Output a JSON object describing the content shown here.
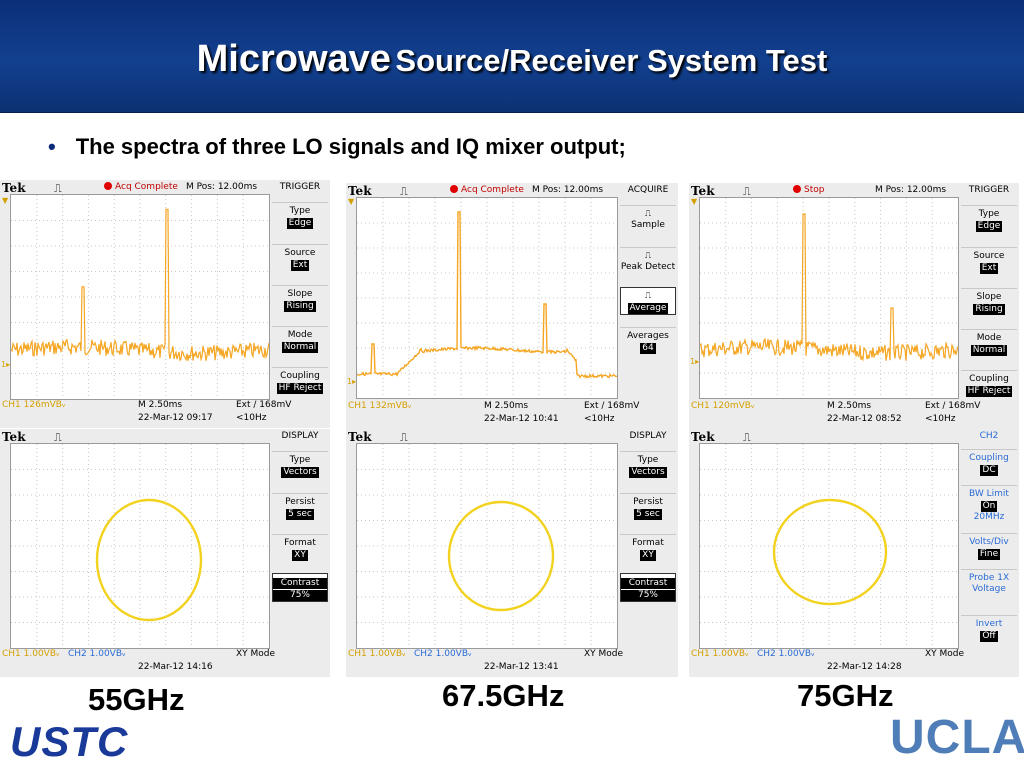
{
  "title": {
    "part1": "Microwave",
    "part2": "Source/Receiver System Test"
  },
  "bullet": "The spectra of three LO signals and IQ mixer output;",
  "scopes": [
    {
      "brand": "Tek",
      "status": "Acq Complete",
      "mpos": "M Pos: 12.00ms",
      "menu_title": "TRIGGER",
      "menu": [
        {
          "label": "Type",
          "value": "Edge"
        },
        {
          "label": "Source",
          "value": "Ext"
        },
        {
          "label": "Slope",
          "value": "Rising"
        },
        {
          "label": "Mode",
          "value": "Normal"
        },
        {
          "label": "Coupling",
          "value": "HF Reject"
        }
      ],
      "footer": {
        "ch1": "CH1  126mVBᵥ",
        "time": "M 2.50ms",
        "trig": "Ext ∕ 168mV",
        "date": "22-Mar-12 09:17",
        "freq": "<10Hz"
      }
    },
    {
      "brand": "Tek",
      "status": "Acq Complete",
      "mpos": "M Pos: 12.00ms",
      "menu_title": "ACQUIRE",
      "menu": [
        {
          "label": "Sample",
          "value": ""
        },
        {
          "label": "Peak Detect",
          "value": ""
        },
        {
          "label": "",
          "value": "Average"
        },
        {
          "label": "Averages",
          "value": "64"
        }
      ],
      "footer": {
        "ch1": "CH1  132mVBᵥ",
        "time": "M 2.50ms",
        "trig": "Ext ∕ 168mV",
        "date": "22-Mar-12 10:41",
        "freq": "<10Hz"
      }
    },
    {
      "brand": "Tek",
      "status": "Stop",
      "mpos": "M Pos: 12.00ms",
      "menu_title": "TRIGGER",
      "menu": [
        {
          "label": "Type",
          "value": "Edge"
        },
        {
          "label": "Source",
          "value": "Ext"
        },
        {
          "label": "Slope",
          "value": "Rising"
        },
        {
          "label": "Mode",
          "value": "Normal"
        },
        {
          "label": "Coupling",
          "value": "HF Reject"
        }
      ],
      "footer": {
        "ch1": "CH1  120mVBᵥ",
        "time": "M 2.50ms",
        "trig": "Ext ∕ 168mV",
        "date": "22-Mar-12 08:52",
        "freq": "<10Hz"
      }
    },
    {
      "brand": "Tek",
      "menu_title": "DISPLAY",
      "menu": [
        {
          "label": "Type",
          "value": "Vectors"
        },
        {
          "label": "Persist",
          "value": "5 sec"
        },
        {
          "label": "Format",
          "value": "XY"
        },
        {
          "label": "Contrast",
          "value": "75%"
        }
      ],
      "footer": {
        "ch1": "CH1  1.00VBᵥ",
        "ch2": "CH2  1.00VBᵥ",
        "mode": "XY Mode",
        "date": "22-Mar-12 14:16"
      }
    },
    {
      "brand": "Tek",
      "menu_title": "DISPLAY",
      "menu": [
        {
          "label": "Type",
          "value": "Vectors"
        },
        {
          "label": "Persist",
          "value": "5 sec"
        },
        {
          "label": "Format",
          "value": "XY"
        },
        {
          "label": "Contrast",
          "value": "75%"
        }
      ],
      "footer": {
        "ch1": "CH1  1.00VBᵥ",
        "ch2": "CH2  1.00VBᵥ",
        "mode": "XY Mode",
        "date": "22-Mar-12 13:41"
      }
    },
    {
      "brand": "Tek",
      "menu_title": "CH2",
      "menu": [
        {
          "label": "Coupling",
          "value": "DC"
        },
        {
          "label": "BW Limit",
          "value": "On"
        },
        {
          "label": "20MHz",
          "value": ""
        },
        {
          "label": "Volts/Div",
          "value": "Fine"
        },
        {
          "label": "Probe 1X Voltage",
          "value": ""
        },
        {
          "label": "Invert",
          "value": "Off"
        }
      ],
      "footer": {
        "ch1": "CH1  1.00VBᵥ",
        "ch2": "CH2  1.00VBᵥ",
        "mode": "XY Mode",
        "date": "22-Mar-12 14:28"
      }
    }
  ],
  "frequencies": [
    "55GHz",
    "67.5GHz",
    "75GHz"
  ],
  "logos": {
    "left": "USTC",
    "right": "UCLA"
  },
  "colors": {
    "trace_spectrum": "#f5a623",
    "trace_xy": "#f2d21e",
    "banner": "#12408f"
  }
}
